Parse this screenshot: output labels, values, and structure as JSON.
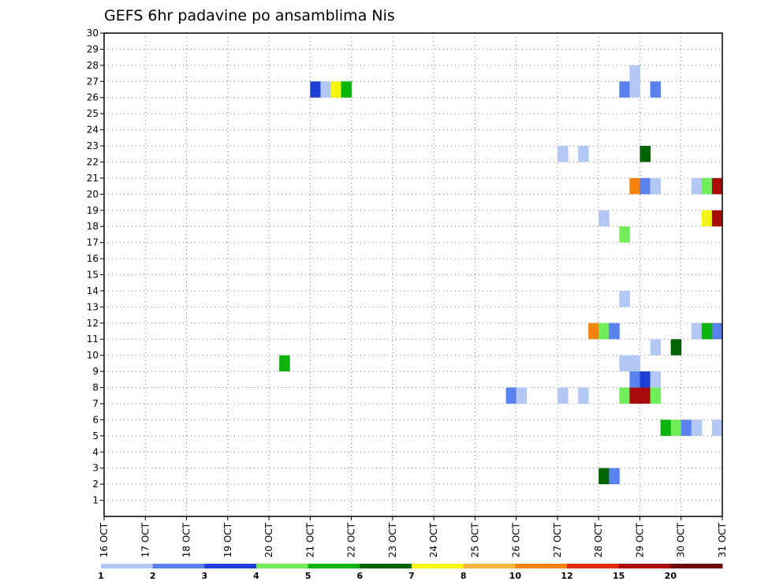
{
  "chart_data": {
    "type": "heatmap",
    "title": "GEFS 6hr padavine po ansamblima Nis",
    "xlabel": "",
    "ylabel": "",
    "x_ticks": [
      "16 OCT",
      "17 OCT",
      "18 OCT",
      "19 OCT",
      "20 OCT",
      "21 OCT",
      "22 OCT",
      "23 OCT",
      "24 OCT",
      "25 OCT",
      "26 OCT",
      "27 OCT",
      "28 OCT",
      "29 OCT",
      "30 OCT",
      "31 OCT"
    ],
    "y_ticks": [
      "1",
      "2",
      "3",
      "4",
      "5",
      "6",
      "7",
      "8",
      "9",
      "10",
      "11",
      "12",
      "13",
      "14",
      "15",
      "16",
      "17",
      "18",
      "19",
      "20",
      "21",
      "22",
      "23",
      "24",
      "25",
      "26",
      "27",
      "28",
      "29",
      "30"
    ],
    "xlim": [
      16,
      31
    ],
    "ylim": [
      0,
      30
    ],
    "time_step_hours": 6,
    "grid": true,
    "legend": {
      "placement": "bottom",
      "labels": [
        "1",
        "2",
        "3",
        "4",
        "5",
        "6",
        "7",
        "8",
        "10",
        "12",
        "15",
        "20"
      ],
      "colors": [
        "#b4c8f5",
        "#5a82ee",
        "#1c3fd6",
        "#72ed5a",
        "#0ab40a",
        "#016401",
        "#f5f50a",
        "#f5b43c",
        "#f5820a",
        "#e12d0a",
        "#aa0a0a",
        "#730a0a"
      ]
    },
    "cells": [
      {
        "x": 21.0,
        "y": 27,
        "v": 3
      },
      {
        "x": 21.25,
        "y": 27,
        "v": 1
      },
      {
        "x": 21.5,
        "y": 27,
        "v": 7
      },
      {
        "x": 21.75,
        "y": 27,
        "v": 5
      },
      {
        "x": 28.5,
        "y": 27,
        "v": 2
      },
      {
        "x": 28.75,
        "y": 27,
        "v": 1
      },
      {
        "x": 29.25,
        "y": 27,
        "v": 2
      },
      {
        "x": 28.75,
        "y": 28,
        "v": 1
      },
      {
        "x": 27.0,
        "y": 23,
        "v": 1
      },
      {
        "x": 27.5,
        "y": 23,
        "v": 1
      },
      {
        "x": 29.0,
        "y": 23,
        "v": 6
      },
      {
        "x": 28.75,
        "y": 21,
        "v": 10
      },
      {
        "x": 29.0,
        "y": 21,
        "v": 2
      },
      {
        "x": 29.25,
        "y": 21,
        "v": 1
      },
      {
        "x": 30.25,
        "y": 21,
        "v": 1
      },
      {
        "x": 30.5,
        "y": 21,
        "v": 4
      },
      {
        "x": 30.75,
        "y": 21,
        "v": 15
      },
      {
        "x": 28.0,
        "y": 19,
        "v": 1
      },
      {
        "x": 30.5,
        "y": 19,
        "v": 7
      },
      {
        "x": 30.75,
        "y": 19,
        "v": 15
      },
      {
        "x": 28.5,
        "y": 18,
        "v": 4
      },
      {
        "x": 28.5,
        "y": 14,
        "v": 1
      },
      {
        "x": 27.75,
        "y": 12,
        "v": 10
      },
      {
        "x": 28.0,
        "y": 12,
        "v": 4
      },
      {
        "x": 28.25,
        "y": 12,
        "v": 2
      },
      {
        "x": 30.25,
        "y": 12,
        "v": 1
      },
      {
        "x": 30.5,
        "y": 12,
        "v": 5
      },
      {
        "x": 30.75,
        "y": 12,
        "v": 2
      },
      {
        "x": 29.25,
        "y": 11,
        "v": 1
      },
      {
        "x": 29.75,
        "y": 11,
        "v": 6
      },
      {
        "x": 20.25,
        "y": 10,
        "v": 5
      },
      {
        "x": 28.5,
        "y": 10,
        "v": 1
      },
      {
        "x": 28.75,
        "y": 10,
        "v": 1
      },
      {
        "x": 28.75,
        "y": 9,
        "v": 2
      },
      {
        "x": 29.0,
        "y": 9,
        "v": 3
      },
      {
        "x": 29.25,
        "y": 9,
        "v": 1
      },
      {
        "x": 25.75,
        "y": 8,
        "v": 2
      },
      {
        "x": 26.0,
        "y": 8,
        "v": 1
      },
      {
        "x": 27.0,
        "y": 8,
        "v": 1
      },
      {
        "x": 27.5,
        "y": 8,
        "v": 1
      },
      {
        "x": 28.5,
        "y": 8,
        "v": 4
      },
      {
        "x": 28.75,
        "y": 8,
        "v": 15
      },
      {
        "x": 29.0,
        "y": 8,
        "v": 15
      },
      {
        "x": 29.25,
        "y": 8,
        "v": 4
      },
      {
        "x": 29.5,
        "y": 6,
        "v": 5
      },
      {
        "x": 29.75,
        "y": 6,
        "v": 4
      },
      {
        "x": 30.0,
        "y": 6,
        "v": 2
      },
      {
        "x": 30.25,
        "y": 6,
        "v": 1
      },
      {
        "x": 30.75,
        "y": 6,
        "v": 1
      },
      {
        "x": 28.0,
        "y": 3,
        "v": 6
      },
      {
        "x": 28.25,
        "y": 3,
        "v": 2
      }
    ]
  }
}
